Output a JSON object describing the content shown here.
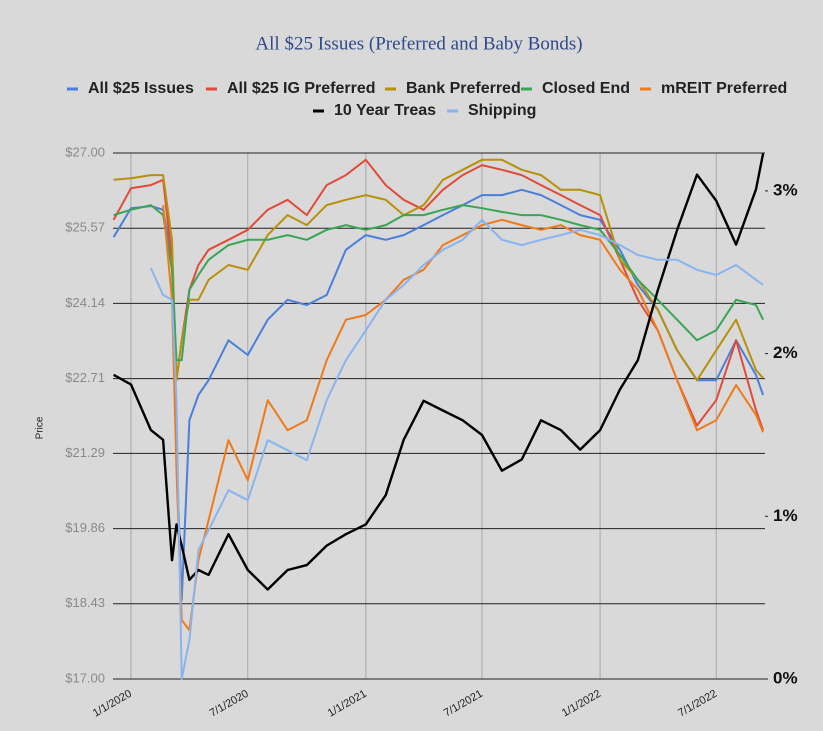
{
  "chart_data": {
    "type": "line",
    "title": "All $25 Issues (Preferred and Baby Bonds)",
    "y_label": "Price",
    "x": [
      "2019-12-05",
      "2020-01-01",
      "2020-02-01",
      "2020-02-20",
      "2020-03-05",
      "2020-03-12",
      "2020-03-20",
      "2020-04-01",
      "2020-04-15",
      "2020-05-01",
      "2020-06-01",
      "2020-07-01",
      "2020-08-01",
      "2020-09-01",
      "2020-10-01",
      "2020-11-01",
      "2020-12-01",
      "2021-01-01",
      "2021-02-01",
      "2021-03-01",
      "2021-04-01",
      "2021-05-01",
      "2021-06-01",
      "2021-07-01",
      "2021-08-01",
      "2021-09-01",
      "2021-10-01",
      "2021-11-01",
      "2021-12-01",
      "2022-01-01",
      "2022-02-01",
      "2022-03-01",
      "2022-04-01",
      "2022-05-01",
      "2022-06-01",
      "2022-07-01",
      "2022-08-01",
      "2022-09-01",
      "2022-09-12"
    ],
    "xlim": [
      "2019-12-04",
      "2022-09-15"
    ],
    "xticks": [
      {
        "value": "2020-01-01",
        "label": "1/1/2020"
      },
      {
        "value": "2020-07-01",
        "label": "7/1/2020"
      },
      {
        "value": "2021-01-01",
        "label": "1/1/2021"
      },
      {
        "value": "2021-07-01",
        "label": "7/1/2021"
      },
      {
        "value": "2022-01-01",
        "label": "1/1/2022"
      },
      {
        "value": "2022-07-01",
        "label": "7/1/2022"
      }
    ],
    "ylim": [
      17,
      27
    ],
    "yticks": [
      {
        "value": 17,
        "label": "$17.00"
      },
      {
        "value": 18.43,
        "label": "$18.43"
      },
      {
        "value": 19.86,
        "label": "$19.86"
      },
      {
        "value": 21.29,
        "label": "$21.29"
      },
      {
        "value": 22.71,
        "label": "$22.71"
      },
      {
        "value": 24.14,
        "label": "$24.14"
      },
      {
        "value": 25.57,
        "label": "$25.57"
      },
      {
        "value": 27,
        "label": "$27.00"
      }
    ],
    "y2lim": [
      0,
      3.233
    ],
    "y2ticks": [
      {
        "value": 0,
        "label": "0%"
      },
      {
        "value": 1,
        "label": "1%"
      },
      {
        "value": 2,
        "label": "2%"
      },
      {
        "value": 3,
        "label": "3%"
      }
    ],
    "grid": true,
    "series": [
      {
        "name": "All $25 Issues",
        "color": "#4a7fdb",
        "values": [
          25.4,
          25.95,
          25.99,
          25.92,
          24.97,
          21.35,
          18.5,
          21.92,
          22.4,
          22.68,
          23.44,
          23.16,
          23.83,
          24.21,
          24.11,
          24.3,
          25.16,
          25.44,
          25.35,
          25.44,
          25.63,
          25.82,
          26.01,
          26.2,
          26.2,
          26.3,
          26.2,
          26.01,
          25.82,
          25.73,
          25.16,
          24.49,
          24.02,
          23.25,
          22.68,
          22.68,
          23.44,
          22.78,
          22.4
        ]
      },
      {
        "name": "All $25 IG Preferred",
        "color": "#e04b3a",
        "values": [
          25.73,
          26.33,
          26.39,
          26.49,
          24.97,
          22.68,
          23.44,
          24.4,
          24.87,
          25.16,
          25.35,
          25.54,
          25.92,
          26.11,
          25.82,
          26.39,
          26.58,
          26.87,
          26.39,
          26.11,
          25.92,
          26.3,
          26.58,
          26.77,
          26.68,
          26.58,
          26.39,
          26.2,
          26.01,
          25.82,
          24.97,
          24.21,
          23.63,
          22.68,
          21.82,
          22.3,
          23.44,
          22.11,
          21.73
        ]
      },
      {
        "name": "Bank Preferred",
        "color": "#b8900a",
        "values": [
          26.49,
          26.52,
          26.58,
          26.58,
          25.35,
          22.68,
          23.44,
          24.21,
          24.21,
          24.59,
          24.87,
          24.78,
          25.44,
          25.82,
          25.63,
          26.01,
          26.11,
          26.2,
          26.11,
          25.82,
          26.01,
          26.49,
          26.68,
          26.87,
          26.87,
          26.68,
          26.58,
          26.3,
          26.3,
          26.2,
          24.97,
          24.59,
          24.02,
          23.25,
          22.68,
          23.25,
          23.83,
          22.87,
          22.72
        ]
      },
      {
        "name": "Closed End",
        "color": "#3aa655",
        "values": [
          25.82,
          25.92,
          26.01,
          25.82,
          24.78,
          23.06,
          23.06,
          24.4,
          24.68,
          24.97,
          25.25,
          25.35,
          25.35,
          25.44,
          25.35,
          25.54,
          25.63,
          25.54,
          25.63,
          25.82,
          25.82,
          25.92,
          26.01,
          25.95,
          25.88,
          25.82,
          25.82,
          25.73,
          25.63,
          25.54,
          25.06,
          24.59,
          24.21,
          23.83,
          23.44,
          23.63,
          24.21,
          24.11,
          23.83
        ]
      },
      {
        "name": "mREIT Preferred",
        "color": "#f07a1a",
        "values": [
          null,
          null,
          null,
          26.01,
          24.21,
          20.97,
          18.12,
          17.93,
          19.26,
          20.02,
          21.54,
          20.78,
          22.3,
          21.73,
          21.92,
          23.06,
          23.83,
          23.92,
          24.21,
          24.59,
          24.78,
          25.25,
          25.44,
          25.63,
          25.73,
          25.63,
          25.54,
          25.63,
          25.44,
          25.35,
          24.78,
          24.4,
          23.63,
          22.68,
          21.73,
          21.92,
          22.59,
          22.02,
          21.69
        ]
      },
      {
        "name": "10 Year Treas",
        "color": "#000000",
        "axis": "y2",
        "values": [
          1.87,
          1.81,
          1.53,
          1.47,
          0.73,
          0.95,
          0.82,
          0.61,
          0.67,
          0.64,
          0.89,
          0.67,
          0.55,
          0.67,
          0.7,
          0.82,
          0.89,
          0.95,
          1.13,
          1.47,
          1.71,
          1.65,
          1.59,
          1.5,
          1.28,
          1.35,
          1.59,
          1.53,
          1.41,
          1.53,
          1.78,
          1.96,
          2.39,
          2.76,
          3.1,
          2.94,
          2.67,
          3.01,
          3.23
        ]
      },
      {
        "name": "Shipping",
        "color": "#8ab4f0",
        "values": [
          null,
          null,
          24.81,
          24.3,
          24.21,
          22.3,
          17.0,
          17.74,
          19.45,
          19.83,
          20.59,
          20.4,
          21.54,
          21.35,
          21.16,
          22.3,
          23.06,
          23.63,
          24.21,
          24.49,
          24.87,
          25.16,
          25.35,
          25.73,
          25.35,
          25.25,
          25.35,
          25.44,
          25.54,
          25.44,
          25.25,
          25.06,
          24.97,
          24.97,
          24.78,
          24.68,
          24.87,
          24.59,
          24.49
        ]
      }
    ]
  }
}
